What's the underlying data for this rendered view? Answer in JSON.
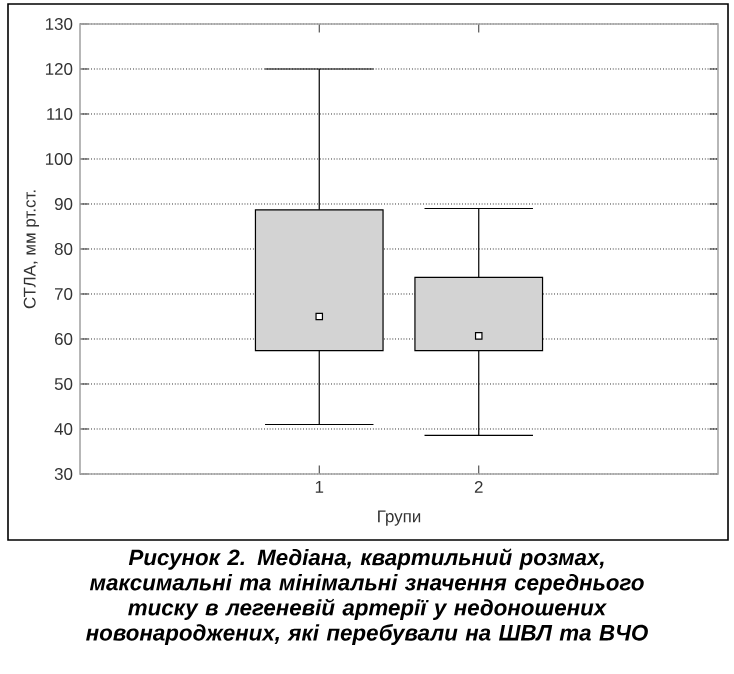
{
  "chart_data": {
    "type": "box",
    "title": "Рисунок 2. Медіана, квартильний розмах, максимальні та мінімальні значення середнього тиску в легеневій артерії у недоношених новонароджених, які перебували на ШВЛ та ВЧО",
    "xlabel": "Групи",
    "ylabel": "СТЛА, мм рт.ст.",
    "categories": [
      "1",
      "2"
    ],
    "boxes": [
      {
        "low": 41,
        "q1": 57.4,
        "median": 65,
        "q3": 88.7,
        "high": 120
      },
      {
        "low": 38.6,
        "q1": 57.4,
        "median": 60.7,
        "q3": 73.7,
        "high": 89
      }
    ],
    "color": "#d3d3d3",
    "ylim": [
      30,
      130
    ],
    "yticks": [
      30,
      40,
      50,
      60,
      70,
      80,
      90,
      100,
      110,
      120,
      130
    ],
    "grid": "y"
  }
}
